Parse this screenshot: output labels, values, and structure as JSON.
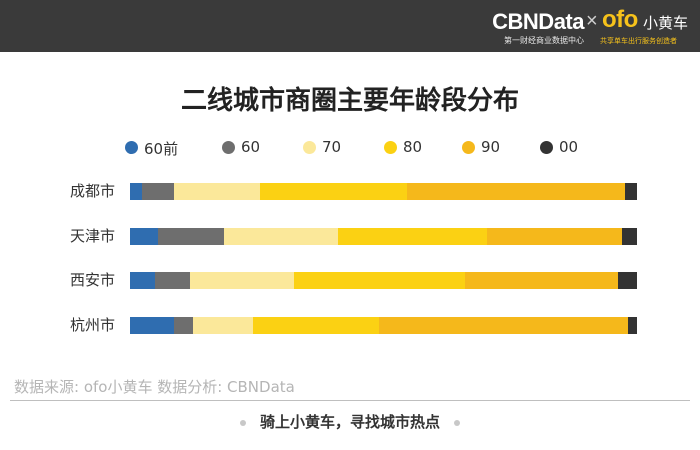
{
  "header": {
    "brand": "CBNData",
    "brand_tagline": "第一财经商业数据中心",
    "separator": "×",
    "partner_logo": "ofo",
    "partner_name": "小黄车",
    "partner_tagline": "共享单车出行服务创造者",
    "background": "#3a3a3a",
    "partner_color": "#f6c21b"
  },
  "chart_data": {
    "type": "bar",
    "orientation": "horizontal",
    "stacked": "percent",
    "title": "二线城市商圈主要年龄段分布",
    "categories": [
      "成都市",
      "天津市",
      "西安市",
      "杭州市"
    ],
    "series": [
      {
        "name": "60前",
        "color": "#2f6db0",
        "values": [
          2.4,
          5.6,
          5.0,
          8.6
        ]
      },
      {
        "name": "60",
        "color": "#6e6e6e",
        "values": [
          6.3,
          12.9,
          6.9,
          3.9
        ]
      },
      {
        "name": "70",
        "color": "#fbe89a",
        "values": [
          17.0,
          22.5,
          20.5,
          11.8
        ]
      },
      {
        "name": "80",
        "color": "#fbd113",
        "values": [
          29.0,
          29.5,
          33.6,
          24.8
        ]
      },
      {
        "name": "90",
        "color": "#f5b81b",
        "values": [
          43.0,
          26.5,
          30.2,
          49.1
        ]
      },
      {
        "name": "00",
        "color": "#333333",
        "values": [
          2.3,
          3.0,
          3.8,
          1.8
        ]
      }
    ],
    "legend": "top",
    "xlim": [
      0,
      100
    ],
    "grid": false
  },
  "source": "数据来源: ofo小黄车    数据分析: CBNData",
  "footer": "骑上小黄车，寻找城市热点"
}
